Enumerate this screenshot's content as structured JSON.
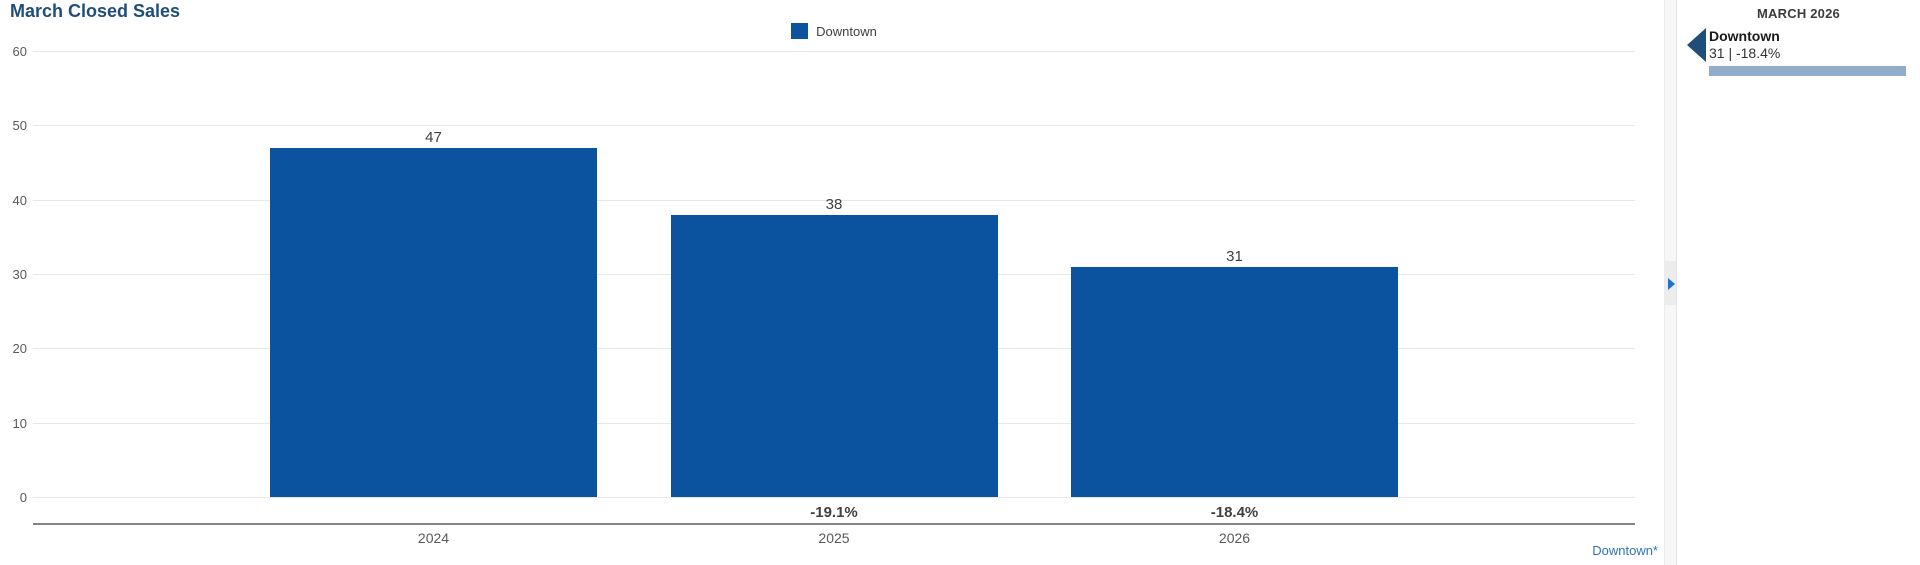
{
  "title": "March Closed Sales",
  "colors": {
    "title_text": "#1F4E79",
    "bar_fill": "#0B539E",
    "gridline": "#E8E8E8",
    "axis_line": "#848484",
    "tick_label": "#595959",
    "value_label": "#404040",
    "link": "#2E74B5",
    "panel_marker": "#1F4E79",
    "trend_bar": "#92ADCC",
    "expand_arrow": "#1B74D1"
  },
  "legend": {
    "items": [
      {
        "label": "Downtown",
        "color": "#0B539E"
      }
    ]
  },
  "chart_data": {
    "type": "bar",
    "title": "March Closed Sales",
    "categories": [
      "2024",
      "2025",
      "2026"
    ],
    "series": [
      {
        "name": "Downtown",
        "values": [
          47,
          38,
          31
        ]
      }
    ],
    "value_labels": [
      "47",
      "38",
      "31"
    ],
    "pct_change_labels": [
      "",
      "-19.1%",
      "-18.4%"
    ],
    "xlabel": "",
    "ylabel": "",
    "ylim": [
      0,
      60
    ],
    "ytick_step": 10,
    "ytick_labels": [
      "0",
      "10",
      "20",
      "30",
      "40",
      "50",
      "60"
    ],
    "grid": "horizontal",
    "legend_position": "top-center"
  },
  "footer": {
    "link_label": "Downtown*"
  },
  "side_panel": {
    "header": "MARCH 2026",
    "entries": [
      {
        "name": "Downtown",
        "stats": "31 | -18.4%"
      }
    ]
  }
}
